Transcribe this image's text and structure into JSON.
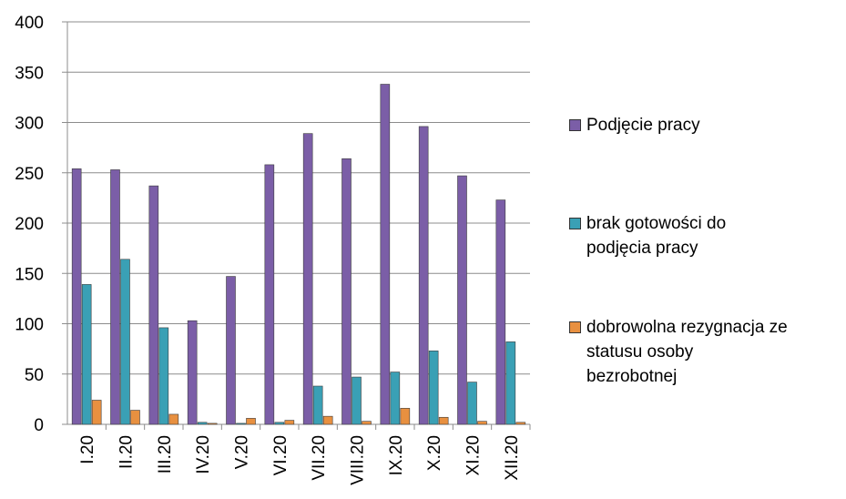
{
  "chart_data": {
    "type": "bar",
    "categories": [
      "I.20",
      "II.20",
      "III.20",
      "IV.20",
      "V.20",
      "VI.20",
      "VII.20",
      "VIII.20",
      "IX.20",
      "X.20",
      "XI.20",
      "XII.20"
    ],
    "series": [
      {
        "name": "Podjęcie pracy",
        "color": "#7b5ea7",
        "values": [
          254,
          253,
          237,
          103,
          147,
          258,
          289,
          264,
          338,
          296,
          247,
          223
        ]
      },
      {
        "name": "brak gotowości do\npodjęcia pracy",
        "color": "#3aa0b5",
        "values": [
          139,
          164,
          96,
          2,
          1,
          2,
          38,
          47,
          52,
          73,
          42,
          82
        ]
      },
      {
        "name": "dobrowolna rezygnacja ze\nstatusu osoby\nbezrobotnej",
        "color": "#e89040",
        "values": [
          24,
          14,
          10,
          1,
          6,
          4,
          8,
          3,
          16,
          7,
          3,
          2
        ]
      }
    ],
    "ylim": [
      0,
      400
    ],
    "yticks": [
      "0",
      "50",
      "100",
      "150",
      "200",
      "250",
      "300",
      "350",
      "400"
    ],
    "grid": true,
    "legend_position": "right"
  }
}
